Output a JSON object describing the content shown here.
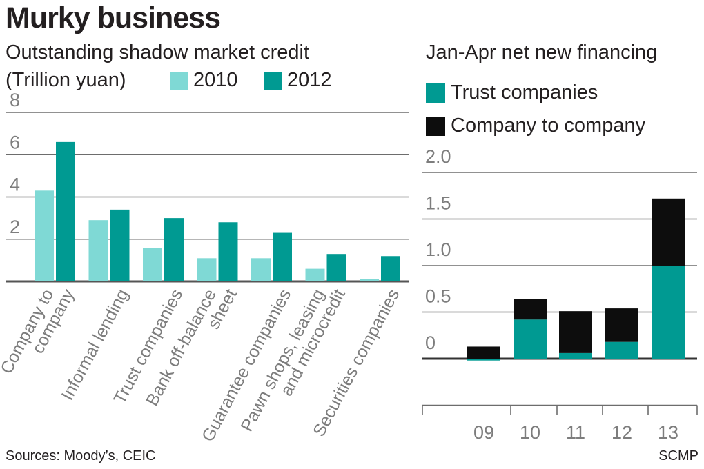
{
  "header": {
    "title": "Murky business"
  },
  "footer": {
    "sources": "Sources: Moody’s, CEIC",
    "credit": "SCMP"
  },
  "colors": {
    "light": "#7fd9d5",
    "dark": "#009a92",
    "black": "#0d0d0d",
    "grid": "#6d6d6d",
    "tick": "#7d7d7d"
  },
  "chart_data": [
    {
      "type": "bar",
      "title": "Outstanding shadow market credit",
      "ylabel": "(Trillion yuan)",
      "legend": [
        "2010",
        "2012"
      ],
      "categories": [
        [
          "Company to",
          "company"
        ],
        [
          "Informal lending"
        ],
        [
          "Trust companies"
        ],
        [
          "Bank off-balance",
          "sheet"
        ],
        [
          "Guarantee companies"
        ],
        [
          "Pawn shops, leasing",
          "and microcredit"
        ],
        [
          "Securities companies"
        ]
      ],
      "series": [
        {
          "name": "2010",
          "values": [
            4.3,
            2.9,
            1.6,
            1.1,
            1.1,
            0.6,
            0.1
          ]
        },
        {
          "name": "2012",
          "values": [
            6.6,
            3.4,
            3.0,
            2.8,
            2.3,
            1.3,
            1.2
          ]
        }
      ],
      "yticks": [
        "2",
        "4",
        "6",
        "8"
      ],
      "ylim": [
        0,
        8
      ]
    },
    {
      "type": "bar",
      "stacked": true,
      "title": "Jan-Apr net new financing",
      "legend": [
        "Trust companies",
        "Company to company"
      ],
      "categories": [
        "09",
        "10",
        "11",
        "12",
        "13"
      ],
      "series": [
        {
          "name": "Trust companies",
          "values": [
            -0.02,
            0.42,
            0.06,
            0.18,
            1.0
          ]
        },
        {
          "name": "Company to company",
          "values": [
            0.13,
            0.22,
            0.45,
            0.36,
            0.72
          ]
        }
      ],
      "yticks": [
        "0",
        "0.5",
        "1.0",
        "1.5",
        "2.0"
      ],
      "ylim": [
        -0.5,
        2.0
      ]
    }
  ]
}
